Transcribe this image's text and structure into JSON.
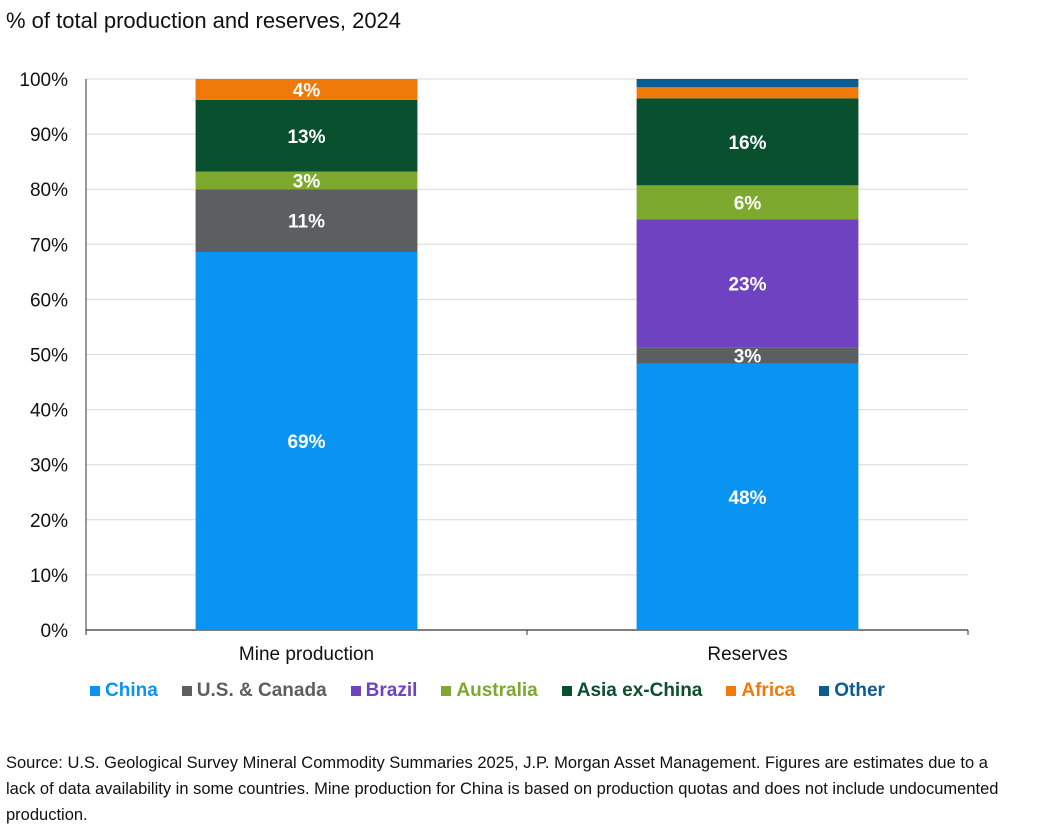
{
  "chart_data": {
    "type": "bar",
    "stacked": true,
    "title": "% of total production and reserves, 2024",
    "categories": [
      "Mine production",
      "Reserves"
    ],
    "ylim": [
      0,
      100
    ],
    "yticks": [
      "0%",
      "10%",
      "20%",
      "30%",
      "40%",
      "50%",
      "60%",
      "70%",
      "80%",
      "90%",
      "100%"
    ],
    "grid": true,
    "legend_position": "bottom",
    "series": [
      {
        "name": "China",
        "color": "#0a94f2",
        "values": [
          68.6,
          48.3
        ],
        "labels": [
          "69%",
          "48%"
        ]
      },
      {
        "name": "U.S. & Canada",
        "color": "#5b5f61",
        "values": [
          11.4,
          3.0
        ],
        "labels": [
          "11%",
          "3%"
        ]
      },
      {
        "name": "Brazil",
        "color": "#6f42c1",
        "values": [
          0,
          23.2
        ],
        "labels": [
          "",
          "23%"
        ]
      },
      {
        "name": "Australia",
        "color": "#7ca92e",
        "values": [
          3.2,
          6.2
        ],
        "labels": [
          "3%",
          "6%"
        ]
      },
      {
        "name": "Asia ex-China",
        "color": "#08502e",
        "values": [
          13.0,
          15.8
        ],
        "labels": [
          "13%",
          "16%"
        ]
      },
      {
        "name": "Africa",
        "color": "#ef7a0a",
        "values": [
          3.8,
          2.0
        ],
        "labels": [
          "4%",
          ""
        ]
      },
      {
        "name": "Other",
        "color": "#0b5c93",
        "values": [
          0,
          1.5
        ],
        "labels": [
          "",
          ""
        ]
      }
    ]
  },
  "source": "Source: U.S. Geological Survey Mineral Commodity Summaries 2025, J.P. Morgan Asset Management. Figures are estimates due to a lack of data availability in some countries. Mine production for China is based on production quotas and does not include undocumented production."
}
